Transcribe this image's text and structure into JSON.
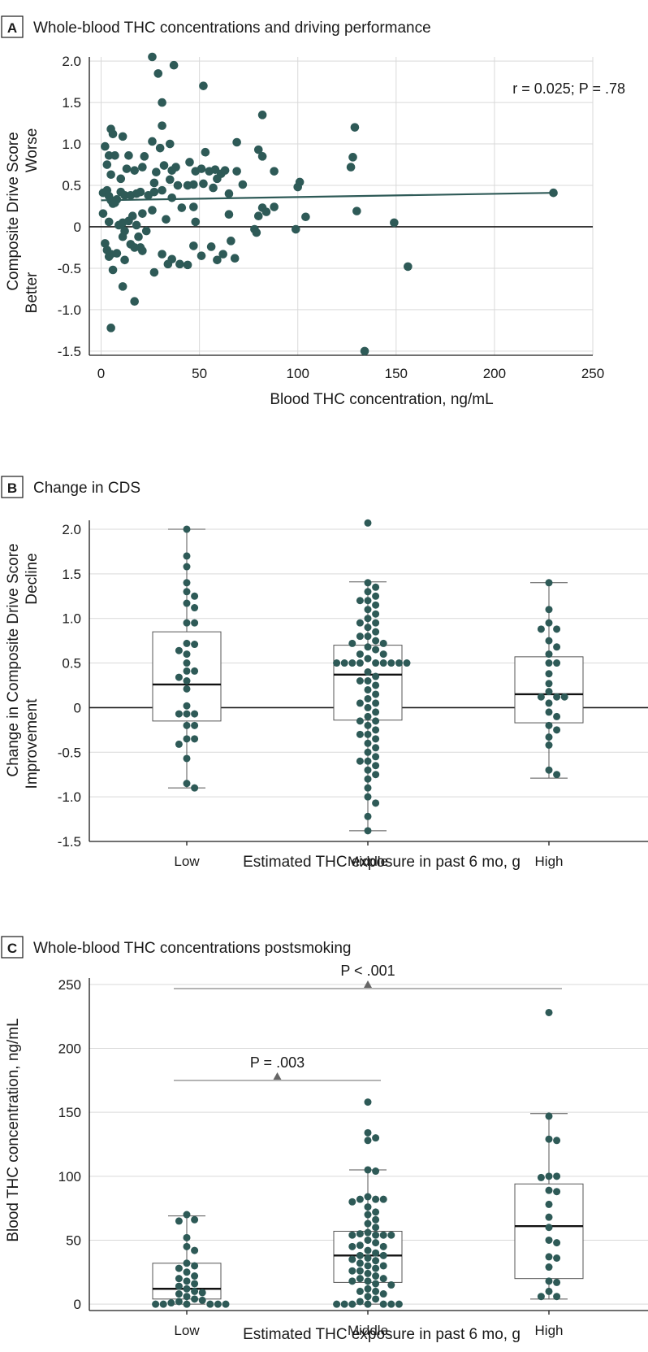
{
  "colors": {
    "point": "#2e5a57",
    "grid": "#d9d9d9",
    "axis": "#1a1a1a",
    "bracket": "#888888"
  },
  "chart_data": [
    {
      "panel": "A",
      "type": "scatter",
      "title": "Whole-blood THC concentrations and driving performance",
      "xlabel": "Blood THC concentration, ng/mL",
      "ylabel": "Composite Drive Score",
      "ylabel_top": "Worse",
      "ylabel_bottom": "Better",
      "xlim": [
        -6,
        250
      ],
      "ylim": [
        -1.55,
        2.05
      ],
      "xticks": [
        0,
        50,
        100,
        150,
        200,
        250
      ],
      "xtick_labels": [
        "0",
        "50",
        "100",
        "150",
        "200",
        "250"
      ],
      "yticks": [
        2.0,
        1.5,
        1.0,
        0.5,
        0,
        -0.5,
        -1.0,
        -1.5
      ],
      "ytick_labels": [
        "2.0",
        "1.5",
        "1.0",
        "0.5",
        "0",
        "-0.5",
        "-1.0",
        "-1.5"
      ],
      "annotation": "r = 0.025; P = .78",
      "trend_line": {
        "x": [
          0,
          230
        ],
        "y": [
          0.32,
          0.41
        ]
      },
      "points": [
        [
          26,
          2.05
        ],
        [
          29,
          1.85
        ],
        [
          37,
          1.95
        ],
        [
          52,
          1.7
        ],
        [
          31,
          1.5
        ],
        [
          82,
          1.35
        ],
        [
          31,
          1.22
        ],
        [
          129,
          1.2
        ],
        [
          5,
          1.18
        ],
        [
          11,
          1.09
        ],
        [
          6,
          1.12
        ],
        [
          2,
          0.97
        ],
        [
          4,
          0.86
        ],
        [
          7,
          0.86
        ],
        [
          14,
          0.86
        ],
        [
          22,
          0.85
        ],
        [
          26,
          1.03
        ],
        [
          30,
          0.95
        ],
        [
          35,
          1.0
        ],
        [
          53,
          0.9
        ],
        [
          69,
          1.02
        ],
        [
          80,
          0.93
        ],
        [
          82,
          0.85
        ],
        [
          128,
          0.84
        ],
        [
          127,
          0.72
        ],
        [
          3,
          0.75
        ],
        [
          5,
          0.63
        ],
        [
          10,
          0.58
        ],
        [
          13,
          0.7
        ],
        [
          17,
          0.68
        ],
        [
          21,
          0.72
        ],
        [
          28,
          0.66
        ],
        [
          32,
          0.74
        ],
        [
          36,
          0.68
        ],
        [
          38,
          0.72
        ],
        [
          45,
          0.78
        ],
        [
          48,
          0.67
        ],
        [
          51,
          0.7
        ],
        [
          55,
          0.67
        ],
        [
          58,
          0.69
        ],
        [
          61,
          0.64
        ],
        [
          63,
          0.68
        ],
        [
          69,
          0.67
        ],
        [
          72,
          0.51
        ],
        [
          88,
          0.67
        ],
        [
          101,
          0.54
        ],
        [
          100,
          0.48
        ],
        [
          1,
          0.41
        ],
        [
          3,
          0.44
        ],
        [
          4,
          0.37
        ],
        [
          5,
          0.32
        ],
        [
          6,
          0.28
        ],
        [
          8,
          0.33
        ],
        [
          10,
          0.42
        ],
        [
          12,
          0.38
        ],
        [
          15,
          0.38
        ],
        [
          18,
          0.4
        ],
        [
          20,
          0.42
        ],
        [
          24,
          0.38
        ],
        [
          27,
          0.53
        ],
        [
          31,
          0.44
        ],
        [
          35,
          0.57
        ],
        [
          39,
          0.5
        ],
        [
          44,
          0.5
        ],
        [
          47,
          0.51
        ],
        [
          52,
          0.52
        ],
        [
          57,
          0.47
        ],
        [
          59,
          0.58
        ],
        [
          65,
          0.4
        ],
        [
          82,
          0.23
        ],
        [
          84,
          0.18
        ],
        [
          88,
          0.24
        ],
        [
          80,
          0.13
        ],
        [
          104,
          0.12
        ],
        [
          130,
          0.19
        ],
        [
          149,
          0.05
        ],
        [
          230,
          0.41
        ],
        [
          1,
          0.16
        ],
        [
          4,
          0.06
        ],
        [
          7,
          0.29
        ],
        [
          9,
          0.02
        ],
        [
          11,
          0.05
        ],
        [
          12,
          -0.05
        ],
        [
          14,
          0.07
        ],
        [
          16,
          0.13
        ],
        [
          18,
          0.02
        ],
        [
          21,
          0.16
        ],
        [
          26,
          0.2
        ],
        [
          33,
          0.09
        ],
        [
          41,
          0.23
        ],
        [
          47,
          0.24
        ],
        [
          48,
          0.06
        ],
        [
          65,
          0.15
        ],
        [
          99,
          -0.03
        ],
        [
          78,
          -0.03
        ],
        [
          2,
          -0.2
        ],
        [
          3,
          -0.28
        ],
        [
          4,
          -0.36
        ],
        [
          5,
          -0.33
        ],
        [
          6,
          -0.52
        ],
        [
          8,
          -0.32
        ],
        [
          11,
          -0.12
        ],
        [
          12,
          -0.4
        ],
        [
          15,
          -0.21
        ],
        [
          17,
          -0.25
        ],
        [
          19,
          -0.12
        ],
        [
          20,
          -0.25
        ],
        [
          21,
          -0.29
        ],
        [
          23,
          -0.05
        ],
        [
          27,
          -0.55
        ],
        [
          31,
          -0.33
        ],
        [
          34,
          -0.45
        ],
        [
          36,
          -0.39
        ],
        [
          40,
          -0.45
        ],
        [
          44,
          -0.46
        ],
        [
          47,
          -0.23
        ],
        [
          51,
          -0.35
        ],
        [
          56,
          -0.24
        ],
        [
          59,
          -0.4
        ],
        [
          62,
          -0.33
        ],
        [
          66,
          -0.17
        ],
        [
          68,
          -0.38
        ],
        [
          79,
          -0.07
        ],
        [
          11,
          -0.72
        ],
        [
          17,
          -0.9
        ],
        [
          5,
          -1.22
        ],
        [
          134,
          -1.5
        ],
        [
          156,
          -0.48
        ],
        [
          27,
          0.42
        ],
        [
          36,
          0.35
        ]
      ]
    },
    {
      "panel": "B",
      "type": "box",
      "title": "Change in CDS",
      "xlabel": "Estimated THC exposure in past 6 mo, g",
      "ylabel": "Change in Composite Drive Score",
      "ylabel_top": "Decline",
      "ylabel_bottom": "Improvement",
      "categories": [
        "Low",
        "Middle",
        "High"
      ],
      "ylim": [
        -1.5,
        2.1
      ],
      "yticks": [
        2.0,
        1.5,
        1.0,
        0.5,
        0,
        -0.5,
        -1.0,
        -1.5
      ],
      "ytick_labels": [
        "2.0",
        "1.5",
        "1.0",
        "0.5",
        "0",
        "-0.5",
        "-1.0",
        "-1.5"
      ],
      "boxes": [
        {
          "category": "Low",
          "q1": -0.15,
          "median": 0.26,
          "q3": 0.85,
          "whisker_low": -0.9,
          "whisker_high": 2.0
        },
        {
          "category": "Middle",
          "q1": -0.14,
          "median": 0.37,
          "q3": 0.7,
          "whisker_low": -1.38,
          "whisker_high": 1.41
        },
        {
          "category": "High",
          "q1": -0.17,
          "median": 0.15,
          "q3": 0.57,
          "whisker_low": -0.79,
          "whisker_high": 1.4
        }
      ],
      "points": [
        [
          2.0,
          1.7,
          1.58,
          1.4,
          1.3,
          1.25,
          1.17,
          1.12,
          0.95,
          0.95,
          0.72,
          0.71,
          0.64,
          0.6,
          0.5,
          0.41,
          0.41,
          0.34,
          0.3,
          0.21,
          0.02,
          -0.07,
          -0.07,
          -0.07,
          -0.2,
          -0.2,
          -0.35,
          -0.35,
          -0.41,
          -0.57,
          -0.85,
          -0.9
        ],
        [
          2.07,
          1.4,
          1.35,
          1.3,
          1.25,
          1.2,
          1.2,
          1.15,
          1.1,
          1.05,
          1.0,
          0.95,
          0.95,
          0.9,
          0.85,
          0.8,
          0.8,
          0.75,
          0.72,
          0.72,
          0.68,
          0.65,
          0.6,
          0.6,
          0.55,
          0.5,
          0.5,
          0.5,
          0.5,
          0.5,
          0.5,
          0.5,
          0.5,
          0.5,
          0.4,
          0.35,
          0.3,
          0.3,
          0.25,
          0.2,
          0.15,
          0.1,
          0.05,
          0.05,
          0.0,
          -0.05,
          -0.1,
          -0.15,
          -0.15,
          -0.2,
          -0.25,
          -0.3,
          -0.3,
          -0.35,
          -0.4,
          -0.45,
          -0.5,
          -0.55,
          -0.6,
          -0.6,
          -0.65,
          -0.7,
          -0.75,
          -0.8,
          -0.9,
          -1.0,
          -1.07,
          -1.22,
          -1.38
        ],
        [
          1.4,
          1.1,
          0.95,
          0.88,
          0.88,
          0.75,
          0.68,
          0.6,
          0.5,
          0.5,
          0.38,
          0.27,
          0.18,
          0.12,
          0.12,
          0.12,
          0.05,
          -0.05,
          -0.1,
          -0.2,
          -0.25,
          -0.33,
          -0.42,
          -0.7,
          -0.75
        ]
      ]
    },
    {
      "panel": "C",
      "type": "box",
      "title": "Whole-blood THC concentrations postsmoking",
      "xlabel": "Estimated THC exposure in past 6 mo, g",
      "ylabel": "Blood THC concentration, ng/mL",
      "categories": [
        "Low",
        "Middle",
        "High"
      ],
      "ylim": [
        -5,
        255
      ],
      "yticks": [
        0,
        50,
        100,
        150,
        200,
        250
      ],
      "ytick_labels": [
        "0",
        "50",
        "100",
        "150",
        "200",
        "250"
      ],
      "comparisons": [
        {
          "from": "Low",
          "to": "Middle",
          "label": "P = .003"
        },
        {
          "from": "Low",
          "to": "High",
          "label": "P < .001"
        }
      ],
      "boxes": [
        {
          "category": "Low",
          "q1": 4,
          "median": 12,
          "q3": 32,
          "whisker_low": 0,
          "whisker_high": 69
        },
        {
          "category": "Middle",
          "q1": 17,
          "median": 38,
          "q3": 57,
          "whisker_low": 0,
          "whisker_high": 105
        },
        {
          "category": "High",
          "q1": 20,
          "median": 61,
          "q3": 94,
          "whisker_low": 4,
          "whisker_high": 149
        }
      ],
      "points": [
        [
          70,
          66,
          65,
          52,
          45,
          42,
          32,
          30,
          28,
          25,
          22,
          20,
          18,
          16,
          14,
          12,
          10,
          9,
          8,
          6,
          4,
          3,
          2,
          1,
          0,
          0,
          0,
          0,
          0,
          0
        ],
        [
          158,
          134,
          130,
          128,
          105,
          104,
          84,
          82,
          82,
          82,
          80,
          76,
          72,
          70,
          66,
          63,
          60,
          56,
          55,
          54,
          54,
          54,
          54,
          50,
          48,
          46,
          45,
          45,
          42,
          40,
          38,
          38,
          36,
          35,
          34,
          32,
          30,
          30,
          28,
          26,
          26,
          24,
          22,
          20,
          20,
          18,
          18,
          16,
          15,
          12,
          10,
          10,
          8,
          6,
          4,
          2,
          0,
          0,
          0,
          0,
          0,
          0,
          0
        ],
        [
          228,
          147,
          129,
          128,
          100,
          100,
          99,
          89,
          88,
          78,
          68,
          60,
          50,
          48,
          37,
          36,
          29,
          18,
          17,
          10,
          6,
          6
        ]
      ]
    }
  ]
}
